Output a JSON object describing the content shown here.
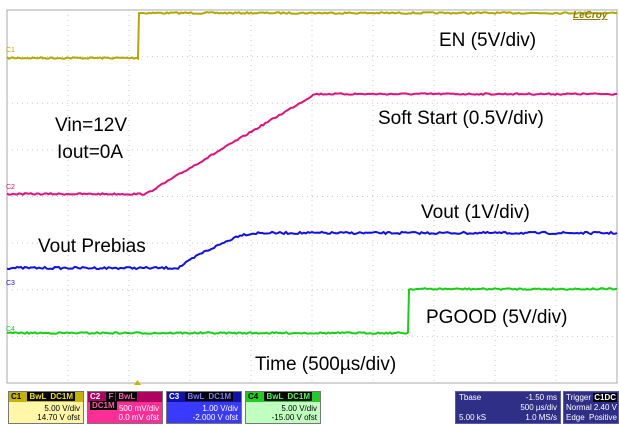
{
  "brand": "LeCroy",
  "annotations": {
    "en": "EN (5V/div)",
    "soft_start": "Soft Start (0.5V/div)",
    "vin": "Vin=12V",
    "iout": "Iout=0A",
    "vout": "Vout (1V/div)",
    "vout_prebias": "Vout Prebias",
    "pgood": "PGOOD (5V/div)",
    "time": "Time (500µs/div)"
  },
  "trace_markers": {
    "c1": "C1",
    "c2": "C2",
    "c3": "C3",
    "c4": "C4"
  },
  "channels": [
    {
      "id": "C1",
      "tags": [
        "BwL",
        "DC1M"
      ],
      "scale": "5.00 V/div",
      "offset": "14.70 V ofst",
      "color": "#b3a800",
      "bg": "#fff6a8"
    },
    {
      "id": "C2",
      "tags": [
        "F",
        "BwL",
        "DC1M"
      ],
      "scale": "500 mV/div",
      "offset": "0.0 mV ofst",
      "color": "#e0117c",
      "bg": "#ff2e96"
    },
    {
      "id": "C3",
      "tags": [
        "",
        "BwL",
        "DC1M"
      ],
      "scale": "1.00 V/div",
      "offset": "-2.000 V ofst",
      "color": "#1a1aff",
      "bg": "#3a3aff"
    },
    {
      "id": "C4",
      "tags": [
        "BwL",
        "DC1M"
      ],
      "scale": "5.00 V/div",
      "offset": "-15.00 V ofst",
      "color": "#1fd31f",
      "bg": "#bfffbf"
    }
  ],
  "timebase": {
    "label": "Tbase",
    "delay": "-1.50 ms",
    "per_div": "500 µs/div",
    "samples": "5.00 kS",
    "rate": "1.0 MS/s"
  },
  "trigger": {
    "label": "Trigger",
    "source": "C1",
    "coupling": "DC",
    "mode": "Normal",
    "level": "2.40 V",
    "type": "Edge",
    "slope": "Positive"
  },
  "colors": {
    "c1": "#b3a800",
    "c2": "#e0117c",
    "c3": "#1010e8",
    "c4": "#16d016",
    "grid": "#c8c8c8"
  }
}
